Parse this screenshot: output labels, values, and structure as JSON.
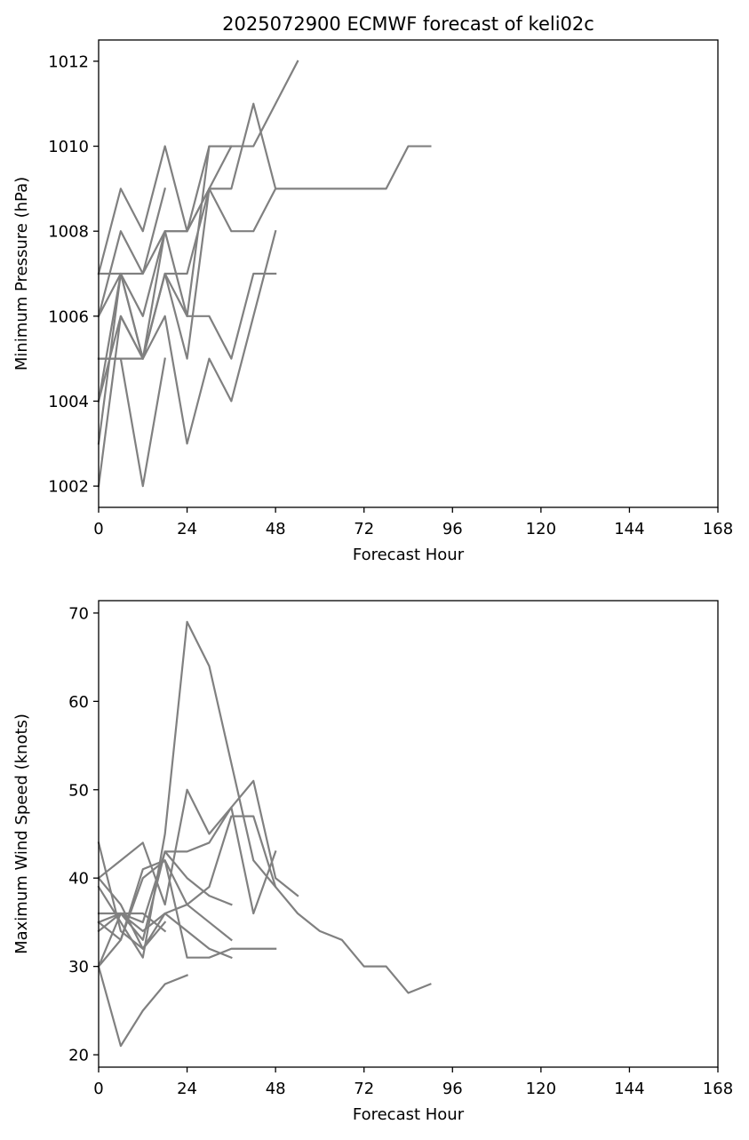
{
  "figure_title": "2025072900 ECMWF forecast of keli02c",
  "line_color": "#808080",
  "chart_data": [
    {
      "type": "line",
      "title": "2025072900 ECMWF forecast of keli02c",
      "xlabel": "Forecast Hour",
      "ylabel": "Minimum Pressure (hPa)",
      "xlim": [
        0,
        168
      ],
      "ylim": [
        1001.5,
        1012.5
      ],
      "xticks": [
        0,
        24,
        48,
        72,
        96,
        120,
        144,
        168
      ],
      "yticks": [
        1002,
        1004,
        1006,
        1008,
        1010,
        1012
      ],
      "grid": false,
      "series": [
        {
          "x": [
            0,
            6,
            12,
            18,
            24,
            30,
            36,
            42,
            48,
            54,
            60,
            66,
            72,
            78,
            84,
            90
          ],
          "y": [
            1003,
            1007,
            1005,
            1007,
            1007,
            1009,
            1009,
            1011,
            1009,
            1009,
            1009,
            1009,
            1009,
            1009,
            1010,
            1010
          ]
        },
        {
          "x": [
            0,
            6,
            12,
            18,
            24,
            30,
            36,
            42,
            48,
            54
          ],
          "y": [
            1007,
            1009,
            1008,
            1010,
            1008,
            1010,
            1010,
            1010,
            1011,
            1012
          ]
        },
        {
          "x": [
            0,
            6,
            12,
            18,
            24,
            30,
            36,
            42,
            48
          ],
          "y": [
            1004,
            1006,
            1005,
            1008,
            1008,
            1009,
            1008,
            1008,
            1009
          ]
        },
        {
          "x": [
            0,
            6,
            12,
            18,
            24,
            30,
            36
          ],
          "y": [
            1007,
            1007,
            1007,
            1008,
            1008,
            1009,
            1010
          ]
        },
        {
          "x": [
            0,
            6,
            12,
            18,
            24,
            30,
            36,
            42,
            48
          ],
          "y": [
            1002,
            1006,
            1005,
            1006,
            1003,
            1005,
            1004,
            1006,
            1008
          ]
        },
        {
          "x": [
            0,
            6,
            12,
            18,
            24,
            30,
            36,
            42,
            48
          ],
          "y": [
            1005,
            1005,
            1005,
            1007,
            1006,
            1006,
            1005,
            1007,
            1007
          ]
        },
        {
          "x": [
            0,
            6,
            12,
            18,
            24,
            30,
            36
          ],
          "y": [
            1006,
            1007,
            1006,
            1008,
            1006,
            1010,
            1010
          ]
        },
        {
          "x": [
            0,
            6,
            12,
            18,
            24,
            30
          ],
          "y": [
            1004,
            1007,
            1005,
            1007,
            1005,
            1009
          ]
        },
        {
          "x": [
            0,
            6,
            12,
            18
          ],
          "y": [
            1006,
            1008,
            1007,
            1009
          ]
        },
        {
          "x": [
            0,
            6,
            12,
            18
          ],
          "y": [
            1005,
            1005,
            1002,
            1005
          ]
        }
      ]
    },
    {
      "type": "line",
      "title": "",
      "xlabel": "Forecast Hour",
      "ylabel": "Maximum Wind Speed (knots)",
      "xlim": [
        0,
        168
      ],
      "ylim": [
        18.6,
        71.4
      ],
      "xticks": [
        0,
        24,
        48,
        72,
        96,
        120,
        144,
        168
      ],
      "yticks": [
        20,
        30,
        40,
        50,
        60,
        70
      ],
      "grid": false,
      "series": [
        {
          "x": [
            0,
            6,
            12,
            18,
            24,
            30,
            36,
            42,
            48,
            54,
            60,
            66,
            72,
            78,
            84,
            90
          ],
          "y": [
            44,
            34,
            32,
            36,
            37,
            39,
            47,
            47,
            39,
            36,
            34,
            33,
            30,
            30,
            27,
            28
          ]
        },
        {
          "x": [
            0,
            6,
            12,
            18,
            24,
            30,
            36,
            42,
            48,
            54
          ],
          "y": [
            40,
            42,
            44,
            37,
            50,
            45,
            48,
            51,
            40,
            38
          ]
        },
        {
          "x": [
            0,
            6,
            12,
            18,
            24,
            30,
            36,
            42,
            48
          ],
          "y": [
            39,
            35,
            31,
            45,
            69,
            64,
            53,
            42,
            39
          ]
        },
        {
          "x": [
            0,
            6,
            12,
            18,
            24,
            30,
            36,
            42,
            48
          ],
          "y": [
            30,
            36,
            35,
            43,
            43,
            44,
            48,
            36,
            43
          ]
        },
        {
          "x": [
            0,
            6,
            12,
            18,
            24,
            30,
            36
          ],
          "y": [
            34,
            36,
            33,
            43,
            40,
            38,
            37
          ]
        },
        {
          "x": [
            0,
            6,
            12,
            18,
            24,
            30,
            36,
            42,
            48
          ],
          "y": [
            35,
            33,
            40,
            42,
            31,
            31,
            32,
            32,
            32
          ]
        },
        {
          "x": [
            0,
            6,
            12,
            18,
            24,
            30,
            36
          ],
          "y": [
            36,
            36,
            34,
            36,
            34,
            32,
            31
          ]
        },
        {
          "x": [
            0,
            6,
            12,
            18,
            24,
            30,
            36
          ],
          "y": [
            30,
            33,
            41,
            42,
            37,
            35,
            33
          ]
        },
        {
          "x": [
            0,
            6,
            12,
            18
          ],
          "y": [
            40,
            37,
            32,
            35
          ]
        },
        {
          "x": [
            0,
            6,
            12,
            18,
            24
          ],
          "y": [
            30,
            21,
            25,
            28,
            29
          ]
        },
        {
          "x": [
            0,
            6,
            12,
            18
          ],
          "y": [
            35,
            36,
            36,
            34
          ]
        }
      ]
    }
  ]
}
